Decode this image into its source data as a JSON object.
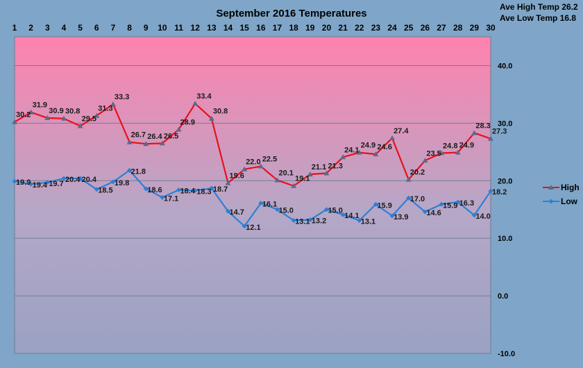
{
  "chart_data": {
    "type": "line",
    "title": "September 2016 Temperatures",
    "categories": [
      "1",
      "2",
      "3",
      "4",
      "5",
      "6",
      "7",
      "8",
      "9",
      "10",
      "11",
      "12",
      "13",
      "14",
      "15",
      "16",
      "17",
      "18",
      "19",
      "20",
      "21",
      "22",
      "23",
      "24",
      "25",
      "26",
      "27",
      "28",
      "29",
      "30"
    ],
    "series": [
      {
        "name": "High",
        "color": "#e8101c",
        "marker_color": "#5a6a8a",
        "values": [
          30.2,
          31.9,
          30.9,
          30.8,
          29.5,
          31.3,
          33.3,
          26.7,
          26.4,
          26.5,
          28.9,
          33.4,
          30.8,
          19.6,
          22.0,
          22.5,
          20.1,
          19.1,
          21.1,
          21.3,
          24.1,
          24.9,
          24.6,
          27.4,
          20.2,
          23.5,
          24.8,
          24.9,
          28.3,
          27.3
        ],
        "labels": [
          "30.2",
          "31.9",
          "30.9",
          "30.8",
          "29.5",
          "31.3",
          "33.3",
          "26.7",
          "26.4",
          "26.5",
          "28.9",
          "33.4",
          "30.8",
          "19.6",
          "22.0",
          "22.5",
          "20.1",
          "19.1",
          "21.1",
          "21.3",
          "24.1",
          "24.9",
          "24.6",
          "27.4",
          "20.2",
          "23.5",
          "24.8",
          "24.9",
          "28.3",
          "27.3"
        ]
      },
      {
        "name": "Low",
        "color": "#2d7fd6",
        "marker_color": "#2d7fd6",
        "values": [
          19.9,
          19.4,
          19.7,
          20.4,
          20.4,
          18.5,
          19.8,
          21.8,
          18.6,
          17.1,
          18.4,
          18.3,
          18.7,
          14.7,
          12.1,
          16.1,
          15.0,
          13.1,
          13.2,
          15.0,
          14.1,
          13.1,
          15.9,
          13.9,
          17.0,
          14.6,
          15.9,
          16.3,
          14.0,
          18.2
        ],
        "labels": [
          "19.9",
          "19.4",
          "19.7",
          "20.4",
          "20.4",
          "18.5",
          "19.8",
          "21.8",
          "18.6",
          "17.1",
          "18.4",
          "18.3",
          "18.7",
          "14.7",
          "12.1",
          "16.1",
          "15.0",
          "13.1",
          "13.2",
          "15.0",
          "14.1",
          "13.1",
          "15.9",
          "13.9",
          "17.0",
          "14.6",
          "15.9",
          "16.3",
          "14.0",
          "18.2"
        ]
      }
    ],
    "ylim": [
      -10,
      45
    ],
    "yticks": [
      -10,
      0,
      10,
      20,
      30,
      40
    ],
    "ytick_labels": [
      "-10.0",
      "0.0",
      "10.0",
      "20.0",
      "30.0",
      "40.0"
    ],
    "y_axis_side": "right",
    "x_axis_position": "top",
    "grid": true,
    "legend_position": "right",
    "plot_background_gradient": [
      "#ff82ae",
      "#b6a7c7",
      "#9aa2c3"
    ],
    "stats": [
      {
        "label": "Ave High Temp",
        "value": "26.2"
      },
      {
        "label": "Ave Low Temp",
        "value": "16.8"
      }
    ]
  }
}
